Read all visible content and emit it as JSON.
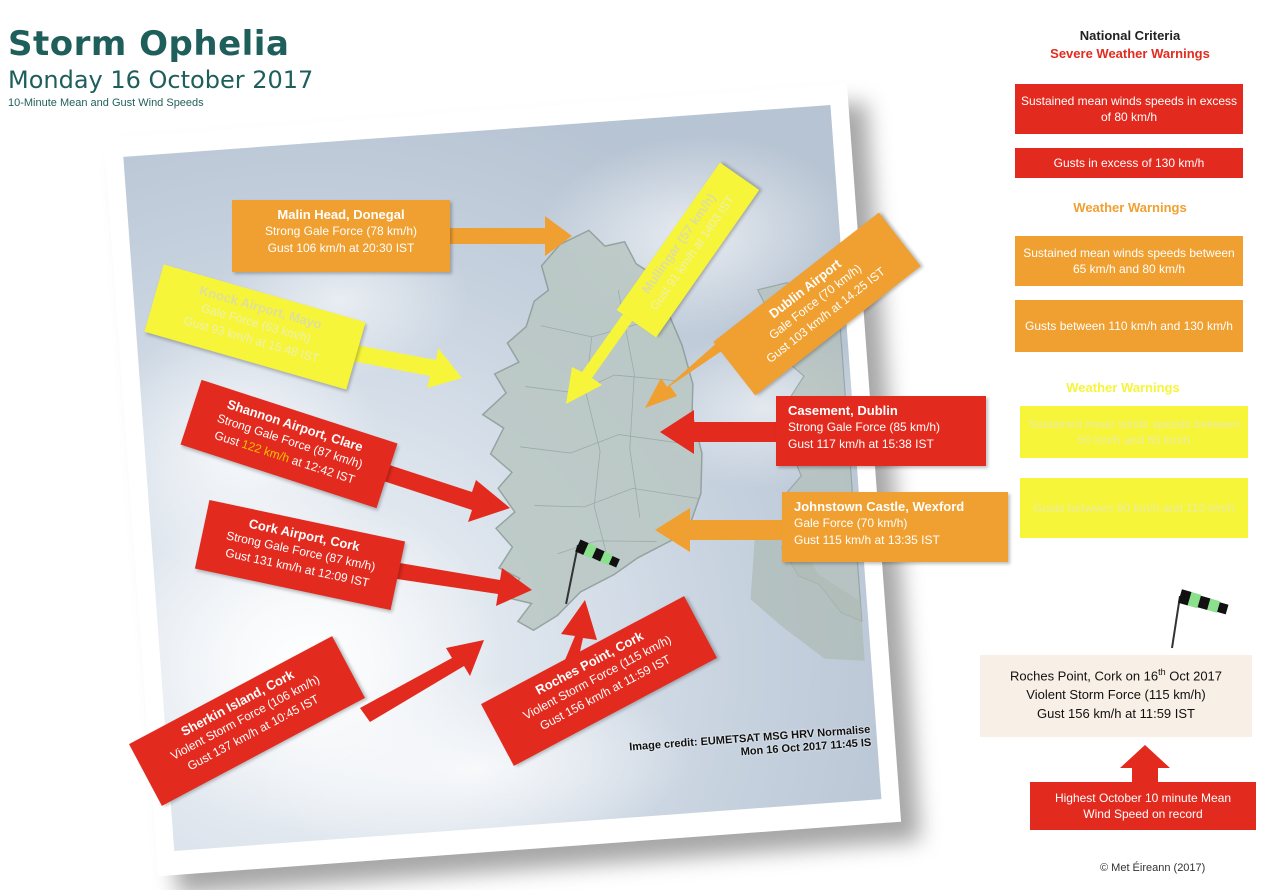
{
  "header": {
    "title": "Storm Ophelia",
    "date": "Monday 16 October 2017",
    "subtitle": "10-Minute Mean and Gust Wind Speeds"
  },
  "map": {
    "credit_line1": "Image credit: EUMETSAT MSG HRV Normalise",
    "credit_line2": "Mon 16 Oct 2017 11:45 IS"
  },
  "stations": {
    "malin": {
      "name": "Malin Head, Donegal",
      "force": "Strong Gale Force (78 km/h)",
      "gust": "Gust 106 km/h at 20:30 IST"
    },
    "knock": {
      "name": "Knock Airport, Mayo",
      "force": "Gale Force (63 km/h)",
      "gust": "Gust 93 km/h at 15.48 IST"
    },
    "mullingar": {
      "name": "Mullingar (57 km/h)",
      "gust": "Gust 91 km/h at 1403 IST"
    },
    "dublin": {
      "name": "Dublin Airport",
      "force": "Gale Force (70 km/h)",
      "gust": "Gust 103 km/h at 14.25 IST"
    },
    "shannon": {
      "name": "Shannon Airport, Clare",
      "force": "Strong Gale Force (87 km/h)",
      "gust_prefix": "Gust ",
      "gust_value": "122 km/h",
      "gust_suffix": " at 12:42 IST"
    },
    "casement": {
      "name": "Casement, Dublin",
      "force": "Strong Gale Force (85 km/h)",
      "gust": "Gust 117 km/h at 15:38 IST"
    },
    "cork": {
      "name": "Cork Airport, Cork",
      "force": "Strong Gale Force (87 km/h)",
      "gust": "Gust 131 km/h at 12:09 IST"
    },
    "johnstown": {
      "name": "Johnstown Castle, Wexford",
      "force": "Gale Force (70 km/h)",
      "gust": "Gust 115 km/h at 13:35 IST"
    },
    "sherkin": {
      "name": "Sherkin Island, Cork",
      "force": "Violent Storm Force (106 km/h)",
      "gust": "Gust 137 km/h at 10:45 IST"
    },
    "roches": {
      "name": "Roches Point, Cork",
      "force": "Violent Storm Force (115 km/h)",
      "gust": "Gust 156 km/h at 11:59 IST"
    }
  },
  "legend": {
    "title": "National Criteria",
    "severe_title": "Severe Weather Warnings",
    "severe_sustained": "Sustained mean winds speeds in excess of 80 km/h",
    "severe_gusts": "Gusts in excess of 130 km/h",
    "orange_title": "Weather Warnings",
    "orange_sustained": "Sustained mean winds speeds between  65 km/h and 80 km/h",
    "orange_gusts": "Gusts between  110 km/h and 130 km/h",
    "yellow_title": "Weather Warnings",
    "yellow_sustained": "Sustained mean winds speeds between  50 km/h and 65 km/h",
    "yellow_gusts": "Gusts between  90 km/h and 110 km/h",
    "colors": {
      "red": "#e32a1e",
      "orange": "#f0a030",
      "yellow": "#f6f53a"
    }
  },
  "record": {
    "line1_prefix": "Roches Point, Cork on 16",
    "line1_sup": "th",
    "line1_suffix": " Oct 2017",
    "line2": "Violent Storm Force (115 km/h)",
    "line3": "Gust 156  km/h at 11:59  IST",
    "note": "Highest October 10 minute Mean Wind Speed   on record"
  },
  "footer": {
    "copyright": "© Met Éireann (2017)"
  },
  "icons": {
    "windsock": "windsock-icon"
  }
}
